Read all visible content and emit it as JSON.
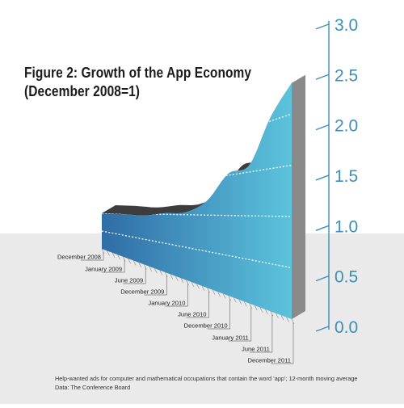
{
  "chart_data": {
    "type": "area",
    "title": "Figure 2: Growth of the App Economy",
    "subtitle": "(December 2008=1)",
    "categories": [
      "December 2008",
      "January 2009",
      "June 2009",
      "December 2009",
      "January 2010",
      "June 2010",
      "December 2010",
      "January 2011",
      "June 2011",
      "December 2011"
    ],
    "values": [
      1.0,
      0.99,
      0.97,
      1.02,
      1.04,
      1.2,
      1.52,
      1.58,
      2.04,
      2.3
    ],
    "yticks": [
      "0.0",
      "0.5",
      "1.0",
      "1.5",
      "2.0",
      "2.5",
      "3.0"
    ],
    "ylim": [
      0,
      3.0
    ],
    "grid": true,
    "colors": {
      "area_light": "#5cc3dc",
      "area_dark": "#2f6da6",
      "top_face": "#3d3d3d",
      "side_face": "#8a8a8a",
      "axis": "#3b8fb8",
      "ground": "#e9eae9"
    }
  },
  "footnote": {
    "line1": "Help-wanted ads for computer and mathematical occupations that contain the word ‘app’; 12-month moving average",
    "line2": "Data: The Conference Board"
  }
}
